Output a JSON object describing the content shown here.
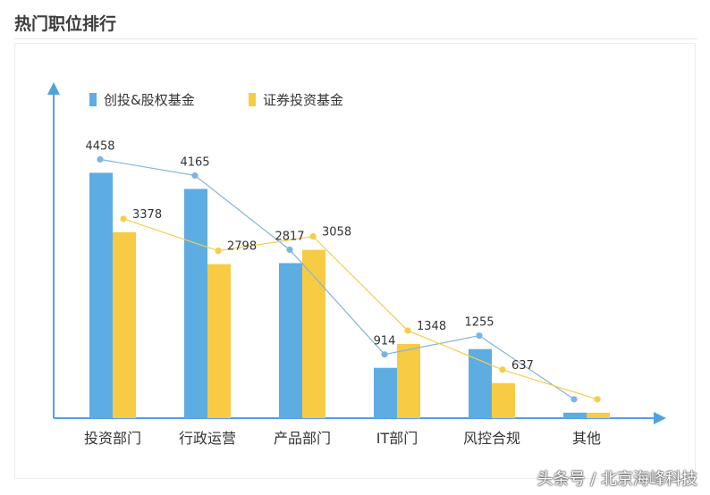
{
  "page": {
    "title": "热门职位排行",
    "watermark": "头条号 / 北京海峰科技"
  },
  "colors": {
    "series1": "#5DADE2",
    "series2": "#F8CB45",
    "line1": "#7FB3E0",
    "line2": "#F4CE4A",
    "axis": "#4FA3DC",
    "text": "#333333"
  },
  "chart_data": {
    "type": "bar",
    "title": "",
    "xlabel": "",
    "ylabel": "",
    "ylim": [
      0,
      5000
    ],
    "legend_position": "top-left",
    "grid": false,
    "categories": [
      "投资部门",
      "行政运营",
      "产品部门",
      "IT部门",
      "风控合规",
      "其他"
    ],
    "series": [
      {
        "name": "创投&股权基金",
        "values": [
          4458,
          4165,
          2817,
          914,
          1255,
          100
        ]
      },
      {
        "name": "证券投资基金",
        "values": [
          3378,
          2798,
          3058,
          1348,
          637,
          100
        ]
      }
    ],
    "data_labels": [
      [
        "4458",
        "4165",
        "2817",
        "914",
        "1255",
        ""
      ],
      [
        "3378",
        "2798",
        "3058",
        "1348",
        "637",
        ""
      ]
    ],
    "overlay_lines": true
  }
}
